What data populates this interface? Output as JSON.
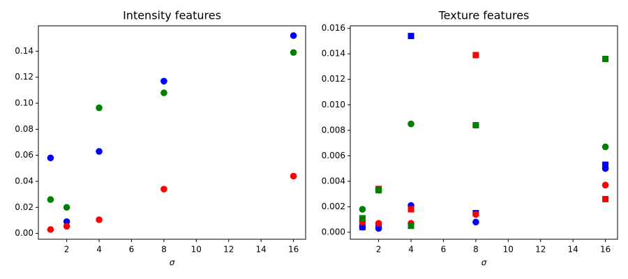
{
  "chart_data": [
    {
      "type": "scatter",
      "title": "Intensity features",
      "xlabel": "σ",
      "x": [
        1,
        2,
        4,
        8,
        16
      ],
      "xlim": [
        0.25,
        16.75
      ],
      "xticks": [
        2,
        4,
        6,
        8,
        10,
        12,
        14,
        16
      ],
      "ylim": [
        -0.0045,
        0.1595
      ],
      "yticks": [
        {
          "value": 0,
          "label": "0.00"
        },
        0.02,
        0.04,
        0.06,
        0.08,
        {
          "value": 0.1,
          "label": "0.10"
        },
        0.12,
        0.14
      ],
      "series": [
        {
          "color": "#0000ff",
          "marker": "o",
          "values": [
            0.058,
            0.009,
            0.063,
            0.117,
            0.152
          ]
        },
        {
          "color": "#008000",
          "marker": "o",
          "values": [
            0.026,
            0.02,
            0.0965,
            0.108,
            0.139
          ]
        },
        {
          "color": "#ff0000",
          "marker": "o",
          "values": [
            0.003,
            0.0055,
            0.0105,
            0.034,
            0.044
          ]
        }
      ]
    },
    {
      "type": "scatter",
      "title": "Texture features",
      "xlabel": "σ",
      "x": [
        1,
        2,
        4,
        8,
        16
      ],
      "xlim": [
        0.25,
        16.75
      ],
      "xticks": [
        2,
        4,
        6,
        8,
        10,
        12,
        14,
        16
      ],
      "ylim": [
        -0.00055,
        0.0162
      ],
      "yticks": [
        {
          "value": 0,
          "label": "0.000"
        },
        0.002,
        0.004,
        0.006,
        0.008,
        {
          "value": 0.01,
          "label": "0.010"
        },
        0.012,
        0.014,
        0.016
      ],
      "series": [
        {
          "color": "#0000ff",
          "marker": "o",
          "values": [
            0.0004,
            0.0003,
            0.0021,
            0.0008,
            0.005
          ]
        },
        {
          "color": "#0000ff",
          "marker": "s",
          "values": [
            0.0004,
            0.0005,
            0.0154,
            0.0015,
            0.0053
          ]
        },
        {
          "color": "#ff0000",
          "marker": "o",
          "values": [
            0.0008,
            0.0007,
            0.0007,
            0.0014,
            0.0037
          ]
        },
        {
          "color": "#ff0000",
          "marker": "s",
          "values": [
            0.001,
            0.0034,
            0.0018,
            0.0139,
            0.0026
          ]
        },
        {
          "color": "#008000",
          "marker": "o",
          "values": [
            0.0018,
            0.0033,
            0.0085,
            0.0084,
            0.0067
          ]
        },
        {
          "color": "#008000",
          "marker": "s",
          "values": [
            0.0011,
            0.0033,
            0.0005,
            0.0084,
            0.0136
          ]
        }
      ]
    }
  ]
}
